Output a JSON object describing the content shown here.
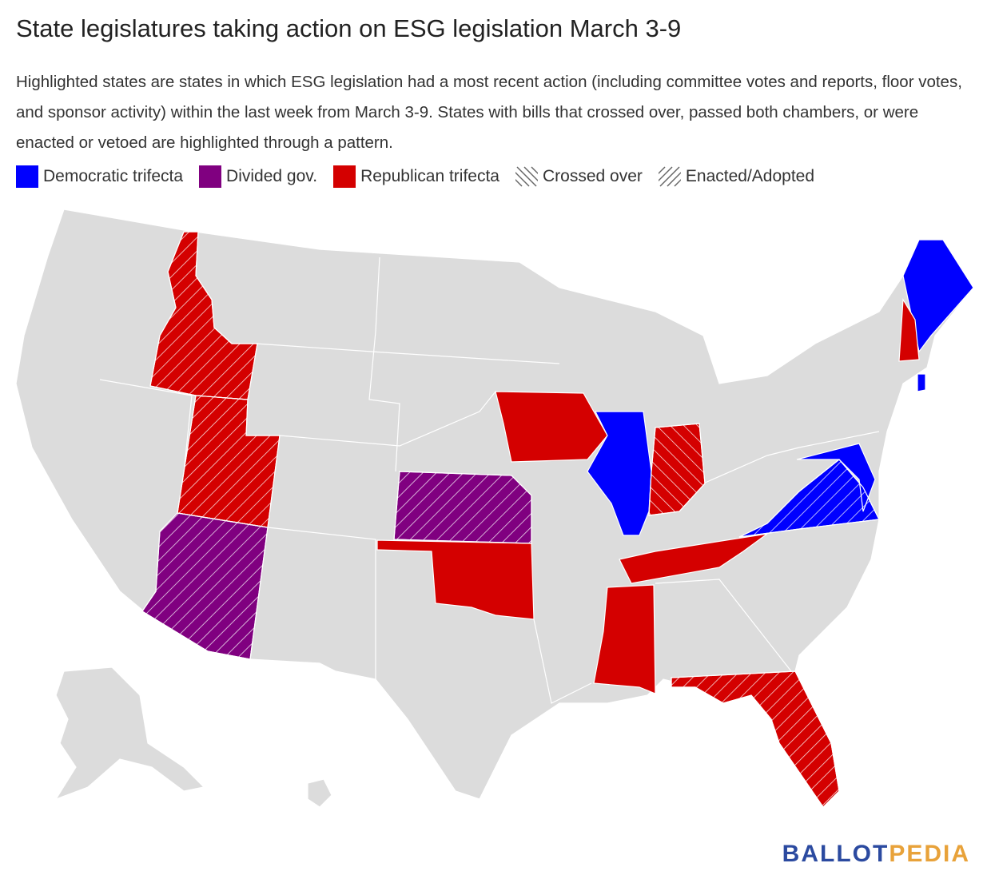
{
  "header": {
    "title": "State legislatures taking action on ESG legislation March 3-9",
    "subtitle": "Highlighted states are states in which ESG legislation had a most recent action (including committee votes and reports, floor votes, and sponsor activity) within the last week from March 3-9. States with bills that crossed over, passed both chambers, or were enacted or vetoed are highlighted through a pattern."
  },
  "legend": [
    {
      "label": "Democratic trifecta",
      "color": "#0000ff"
    },
    {
      "label": "Divided gov.",
      "color": "#800080"
    },
    {
      "label": "Republican trifecta",
      "color": "#d40000"
    },
    {
      "label": "Crossed over",
      "pattern": "back"
    },
    {
      "label": "Enacted/Adopted",
      "pattern": "forward"
    }
  ],
  "map": {
    "highlighted": [
      {
        "party": 2,
        "status": 3
      },
      {
        "party": 2,
        "status": 3
      },
      {
        "party": 1,
        "status": 3
      },
      {
        "party": 1,
        "status": 3
      },
      {
        "party": 2,
        "status": null
      },
      {
        "party": 2,
        "status": null
      },
      {
        "party": 0,
        "status": null
      },
      {
        "party": 2,
        "status": 4
      },
      {
        "party": 2,
        "status": null
      },
      {
        "party": 2,
        "status": null
      },
      {
        "party": 2,
        "status": 3
      },
      {
        "party": 0,
        "status": 3
      },
      {
        "party": 0,
        "status": null
      },
      {
        "party": 0,
        "status": null
      },
      {
        "party": 2,
        "status": null
      },
      {
        "party": 0,
        "status": null
      }
    ]
  },
  "logo": {
    "first": "BALLOT",
    "second": "PEDIA"
  }
}
